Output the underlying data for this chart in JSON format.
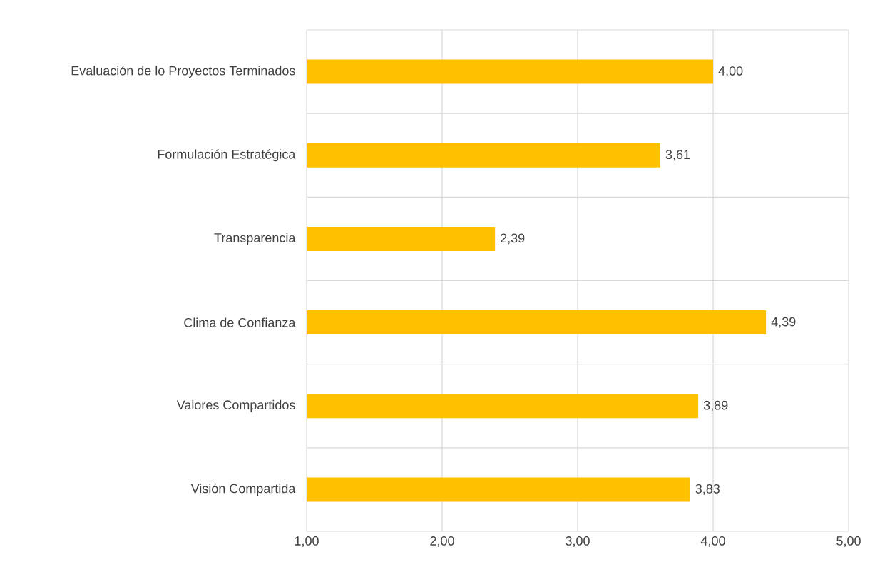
{
  "chart_data": {
    "type": "bar",
    "orientation": "horizontal",
    "categories": [
      "Evaluación de lo Proyectos Terminados",
      "Formulación Estratégica",
      "Transparencia",
      "Clima de Confianza",
      "Valores Compartidos",
      "Visión Compartida"
    ],
    "values": [
      4.0,
      3.61,
      2.39,
      4.39,
      3.89,
      3.83
    ],
    "value_labels": [
      "4,00",
      "3,61",
      "2,39",
      "4,39",
      "3,89",
      "3,83"
    ],
    "color": "#ffc000",
    "xlim": [
      1,
      5
    ],
    "xticks": [
      {
        "value": 1,
        "label": "1,00"
      },
      {
        "value": 2,
        "label": "2,00"
      },
      {
        "value": 3,
        "label": "3,00"
      },
      {
        "value": 4,
        "label": "4,00"
      },
      {
        "value": 5,
        "label": "5,00"
      }
    ],
    "grid": true
  }
}
